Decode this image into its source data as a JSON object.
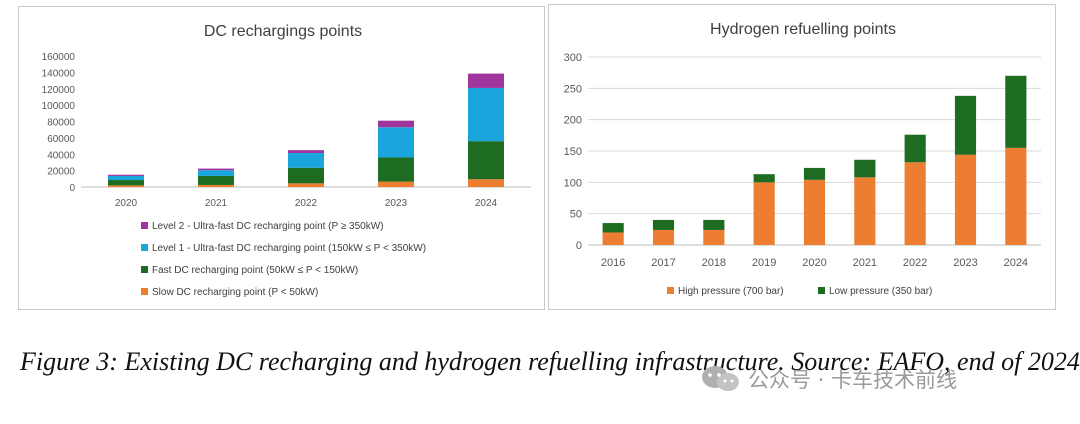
{
  "charts": [
    {
      "type": "bar",
      "stacked": true,
      "title": "DC rechargings points",
      "categories": [
        "2020",
        "2021",
        "2022",
        "2023",
        "2024"
      ],
      "yticks": [
        "0",
        "20000",
        "40000",
        "60000",
        "80000",
        "100000",
        "120000",
        "140000",
        "160000"
      ],
      "ylim": [
        0,
        160000
      ],
      "series": [
        {
          "name": "Slow DC recharging point (P < 50kW)",
          "color": "#ed7d31",
          "values": [
            2000,
            2500,
            4500,
            6500,
            9500
          ]
        },
        {
          "name": "Fast DC recharging point (50kW ≤ P < 150kW)",
          "color": "#1e6b22",
          "values": [
            6500,
            11000,
            19000,
            29500,
            46500
          ]
        },
        {
          "name": "Level 1 - Ultra-fast DC recharging point (150kW ≤ P < 350kW)",
          "color": "#1aa6dc",
          "values": [
            5000,
            7000,
            18000,
            37000,
            65000
          ]
        },
        {
          "name": "Level 2 - Ultra-fast DC recharging point (P ≥ 350kW)",
          "color": "#a0359e",
          "values": [
            1500,
            2000,
            3500,
            8000,
            17500
          ]
        }
      ],
      "legend_order": [
        3,
        2,
        1,
        0
      ]
    },
    {
      "type": "bar",
      "stacked": true,
      "title": "Hydrogen refuelling points",
      "categories": [
        "2016",
        "2017",
        "2018",
        "2019",
        "2020",
        "2021",
        "2022",
        "2023",
        "2024"
      ],
      "yticks": [
        "0",
        "50",
        "100",
        "150",
        "200",
        "250",
        "300"
      ],
      "ylim": [
        0,
        300
      ],
      "series": [
        {
          "name": "High pressure (700 bar)",
          "color": "#ed7d31",
          "values": [
            20,
            24,
            24,
            100,
            104,
            108,
            132,
            144,
            155
          ]
        },
        {
          "name": "Low pressure (350 bar)",
          "color": "#1e6b22",
          "values": [
            15,
            16,
            16,
            13,
            19,
            28,
            44,
            94,
            115
          ]
        }
      ],
      "legend_order": [
        0,
        1
      ]
    }
  ],
  "caption": "Figure 3: Existing DC recharging and hydrogen refuelling infrastructure. Source: EAFO, end of 2024",
  "watermark": "公众号 · 卡车技术前线"
}
